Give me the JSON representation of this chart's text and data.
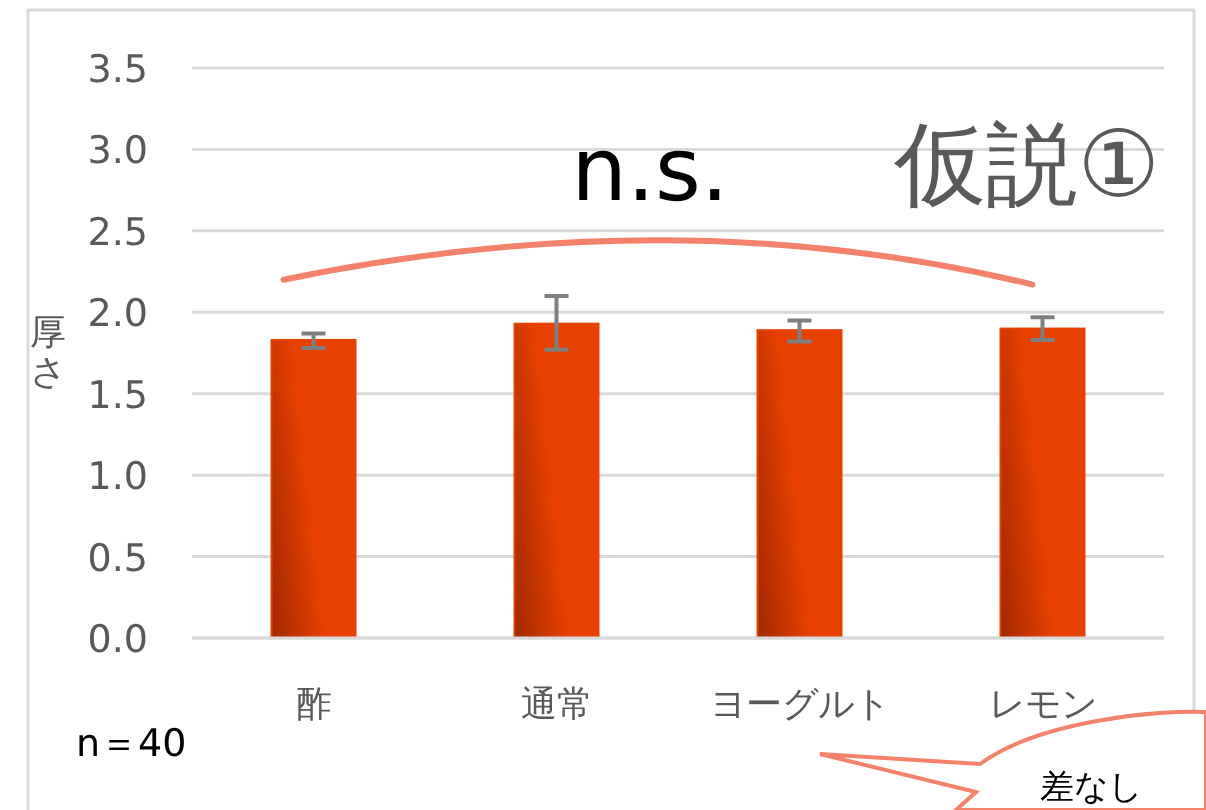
{
  "chart_data": {
    "type": "bar",
    "title": "仮説①",
    "ylabel": "厚さ",
    "categories": [
      "酢",
      "通常",
      "ヨーグルト",
      "レモン"
    ],
    "values": [
      1.83,
      1.93,
      1.89,
      1.9
    ],
    "errors": [
      [
        1.78,
        1.87
      ],
      [
        1.77,
        2.1
      ],
      [
        1.82,
        1.95
      ],
      [
        1.83,
        1.97
      ]
    ],
    "color": "#e64100",
    "ylim": [
      0,
      3.5
    ],
    "yticks": [
      {
        "value": 0,
        "label": "0.0"
      },
      {
        "value": 0.5,
        "label": "0.5"
      },
      {
        "value": 1,
        "label": "1.0"
      },
      {
        "value": 1.5,
        "label": "1.5"
      },
      {
        "value": 2,
        "label": "2.0"
      },
      {
        "value": 2.5,
        "label": "2.5"
      },
      {
        "value": 3,
        "label": "3.0"
      },
      {
        "value": 3.5,
        "label": "3.5"
      }
    ],
    "grid": "y",
    "annotations": [
      "n.s.",
      "n＝40",
      "差なし"
    ]
  }
}
